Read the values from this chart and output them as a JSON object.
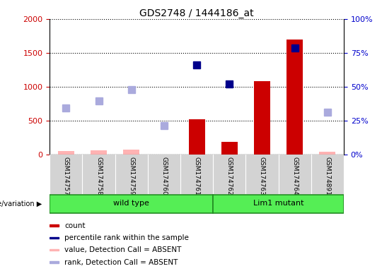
{
  "title": "GDS2748 / 1444186_at",
  "samples": [
    "GSM174757",
    "GSM174758",
    "GSM174759",
    "GSM174760",
    "GSM174761",
    "GSM174762",
    "GSM174763",
    "GSM174764",
    "GSM174891"
  ],
  "groups": {
    "wild type": [
      0,
      1,
      2,
      3,
      4
    ],
    "Lim1 mutant": [
      5,
      6,
      7,
      8
    ]
  },
  "count": [
    null,
    null,
    null,
    null,
    520,
    190,
    1080,
    1700,
    null
  ],
  "count_absent": [
    50,
    60,
    70,
    null,
    null,
    null,
    null,
    null,
    40
  ],
  "percentile_rank": [
    null,
    null,
    null,
    null,
    1320,
    1040,
    null,
    1570,
    null
  ],
  "rank_absent": [
    690,
    790,
    960,
    430,
    null,
    null,
    null,
    null,
    620
  ],
  "ylim_left": [
    0,
    2000
  ],
  "ylim_right": [
    0,
    100
  ],
  "yticks_left": [
    0,
    500,
    1000,
    1500,
    2000
  ],
  "yticks_right": [
    0,
    25,
    50,
    75,
    100
  ],
  "yticklabels_left": [
    "0",
    "500",
    "1000",
    "1500",
    "2000"
  ],
  "yticklabels_right": [
    "0%",
    "25%",
    "50%",
    "75%",
    "100%"
  ],
  "color_count": "#CC0000",
  "color_count_absent": "#FFB3B3",
  "color_rank": "#00008B",
  "color_rank_absent": "#AAAADD",
  "group_color_light": "#AAFFAA",
  "group_color_bright": "#55EE55",
  "group_border": "#228B22",
  "bar_width": 0.5,
  "marker_size": 7,
  "left_label_color": "#CC0000",
  "right_label_color": "#0000CC",
  "xlabel_area_color": "#D3D3D3",
  "legend_items": [
    {
      "label": "count",
      "color": "#CC0000"
    },
    {
      "label": "percentile rank within the sample",
      "color": "#00008B"
    },
    {
      "label": "value, Detection Call = ABSENT",
      "color": "#FFB3B3"
    },
    {
      "label": "rank, Detection Call = ABSENT",
      "color": "#AAAADD"
    }
  ],
  "geno_label": "genotype/variation"
}
